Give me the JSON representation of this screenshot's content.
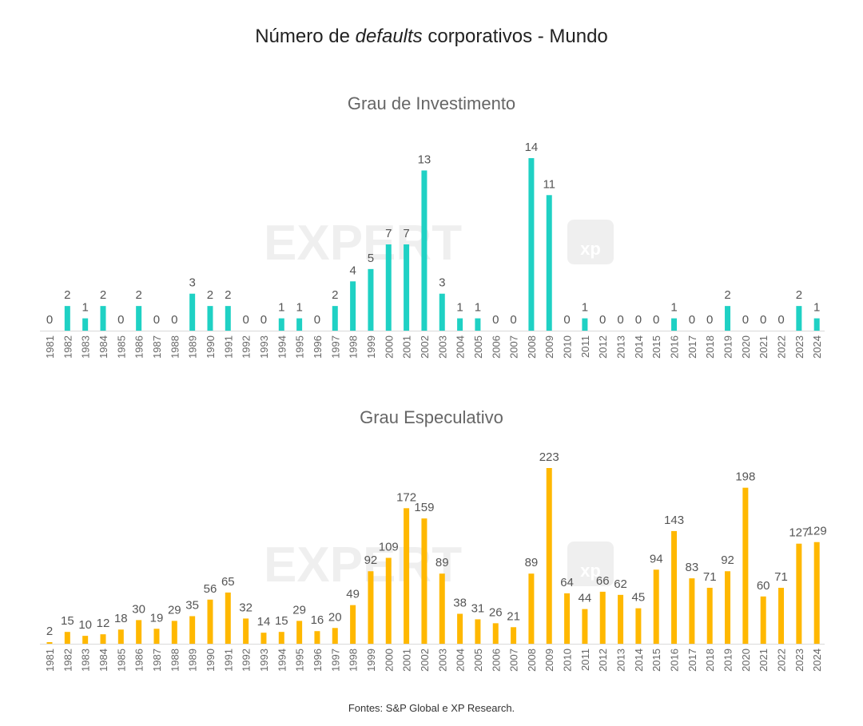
{
  "title": {
    "prefix": "Número de ",
    "emph": "defaults",
    "suffix": " corporativos - Mundo"
  },
  "source": "Fontes: S&P Global e XP Research.",
  "watermark": {
    "brand": "EXPERT",
    "badge": "xp"
  },
  "colors": {
    "investment": "#1fd1c4",
    "speculative": "#ffb800",
    "axis": "#d9d9d9",
    "label": "#555555",
    "watermark": "#000000"
  },
  "chart_data": [
    {
      "type": "bar",
      "title": "Grau de Investimento",
      "xlabel": "",
      "ylabel": "",
      "ylim": [
        0,
        14
      ],
      "categories": [
        "1981",
        "1982",
        "1983",
        "1984",
        "1985",
        "1986",
        "1987",
        "1988",
        "1989",
        "1990",
        "1991",
        "1992",
        "1993",
        "1994",
        "1995",
        "1996",
        "1997",
        "1998",
        "1999",
        "2000",
        "2001",
        "2002",
        "2003",
        "2004",
        "2005",
        "2006",
        "2007",
        "2008",
        "2009",
        "2010",
        "2011",
        "2012",
        "2013",
        "2014",
        "2015",
        "2016",
        "2017",
        "2018",
        "2019",
        "2020",
        "2021",
        "2022",
        "2023",
        "2024"
      ],
      "values": [
        0,
        2,
        1,
        2,
        0,
        2,
        0,
        0,
        3,
        2,
        2,
        0,
        0,
        1,
        1,
        0,
        2,
        4,
        5,
        7,
        7,
        13,
        3,
        1,
        1,
        0,
        0,
        14,
        11,
        0,
        1,
        0,
        0,
        0,
        0,
        1,
        0,
        0,
        2,
        0,
        0,
        0,
        2,
        1
      ]
    },
    {
      "type": "bar",
      "title": "Grau Especulativo",
      "xlabel": "",
      "ylabel": "",
      "ylim": [
        0,
        223
      ],
      "categories": [
        "1981",
        "1982",
        "1983",
        "1984",
        "1985",
        "1986",
        "1987",
        "1988",
        "1989",
        "1990",
        "1991",
        "1992",
        "1993",
        "1994",
        "1995",
        "1996",
        "1997",
        "1998",
        "1999",
        "2000",
        "2001",
        "2002",
        "2003",
        "2004",
        "2005",
        "2006",
        "2007",
        "2008",
        "2009",
        "2010",
        "2011",
        "2012",
        "2013",
        "2014",
        "2015",
        "2016",
        "2017",
        "2018",
        "2019",
        "2020",
        "2021",
        "2022",
        "2023",
        "2024"
      ],
      "values": [
        2,
        15,
        10,
        12,
        18,
        30,
        19,
        29,
        35,
        56,
        65,
        32,
        14,
        15,
        29,
        16,
        20,
        49,
        92,
        109,
        172,
        159,
        89,
        38,
        31,
        26,
        21,
        89,
        223,
        64,
        44,
        66,
        62,
        45,
        94,
        143,
        83,
        71,
        92,
        198,
        60,
        71,
        127,
        129
      ]
    }
  ]
}
